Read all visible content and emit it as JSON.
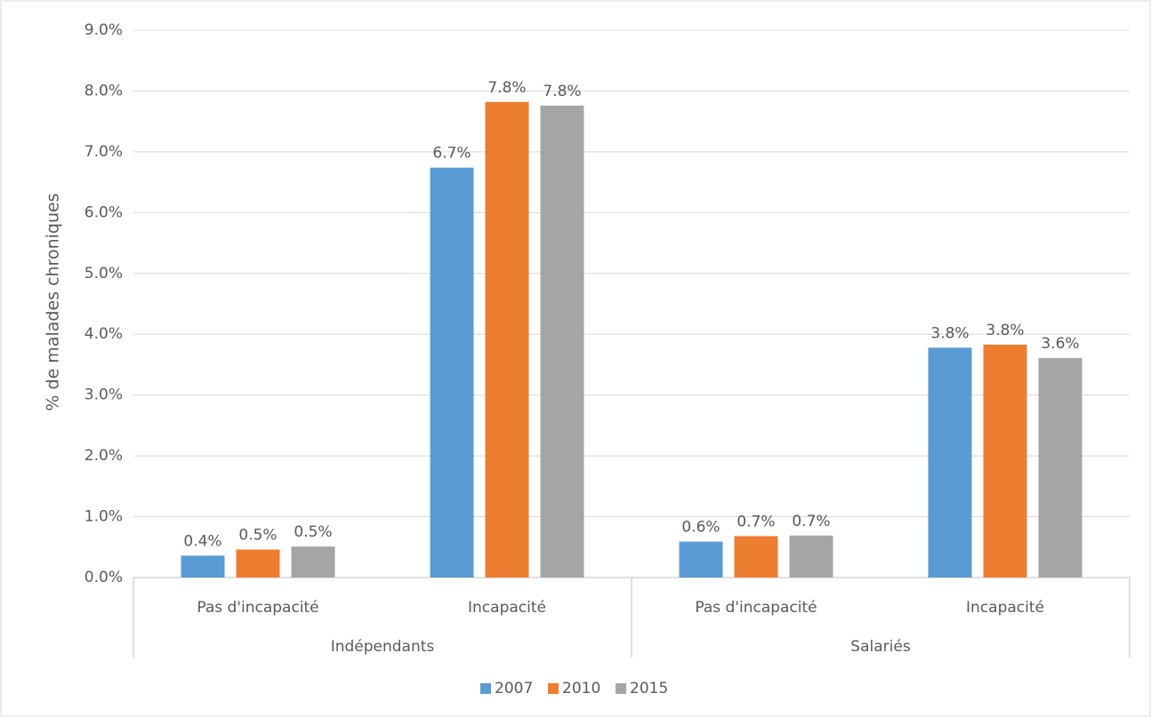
{
  "chart_data": {
    "type": "bar",
    "y_label": "% de malades chroniques",
    "categories": [
      "Pas d'incapacité",
      "Incapacité",
      "Pas d'incapacité",
      "Incapacité"
    ],
    "group_labels": [
      "Indépendants",
      "Salariés"
    ],
    "series": [
      {
        "name": "2007",
        "color": "#5b9bd5",
        "values": [
          0.36,
          6.74,
          0.59,
          3.78
        ],
        "value_labels": [
          "0.4%",
          "6.7%",
          "0.6%",
          "3.8%"
        ]
      },
      {
        "name": "2010",
        "color": "#ed7d31",
        "values": [
          0.46,
          7.82,
          0.68,
          3.83
        ],
        "value_labels": [
          "0.5%",
          "7.8%",
          "0.7%",
          "3.8%"
        ]
      },
      {
        "name": "2015",
        "color": "#a5a5a5",
        "values": [
          0.51,
          7.76,
          0.69,
          3.61
        ],
        "value_labels": [
          "0.5%",
          "7.8%",
          "0.7%",
          "3.6%"
        ]
      }
    ],
    "ylim": [
      0,
      9
    ],
    "yticks": [
      {
        "value": 0,
        "label": "0.0%"
      },
      {
        "value": 1,
        "label": "1.0%"
      },
      {
        "value": 2,
        "label": "2.0%"
      },
      {
        "value": 3,
        "label": "3.0%"
      },
      {
        "value": 4,
        "label": "4.0%"
      },
      {
        "value": 5,
        "label": "5.0%"
      },
      {
        "value": 6,
        "label": "6.0%"
      },
      {
        "value": 7,
        "label": "7.0%"
      },
      {
        "value": 8,
        "label": "8.0%"
      },
      {
        "value": 9,
        "label": "9.0%"
      }
    ],
    "grid": true,
    "legend": "bottom"
  }
}
